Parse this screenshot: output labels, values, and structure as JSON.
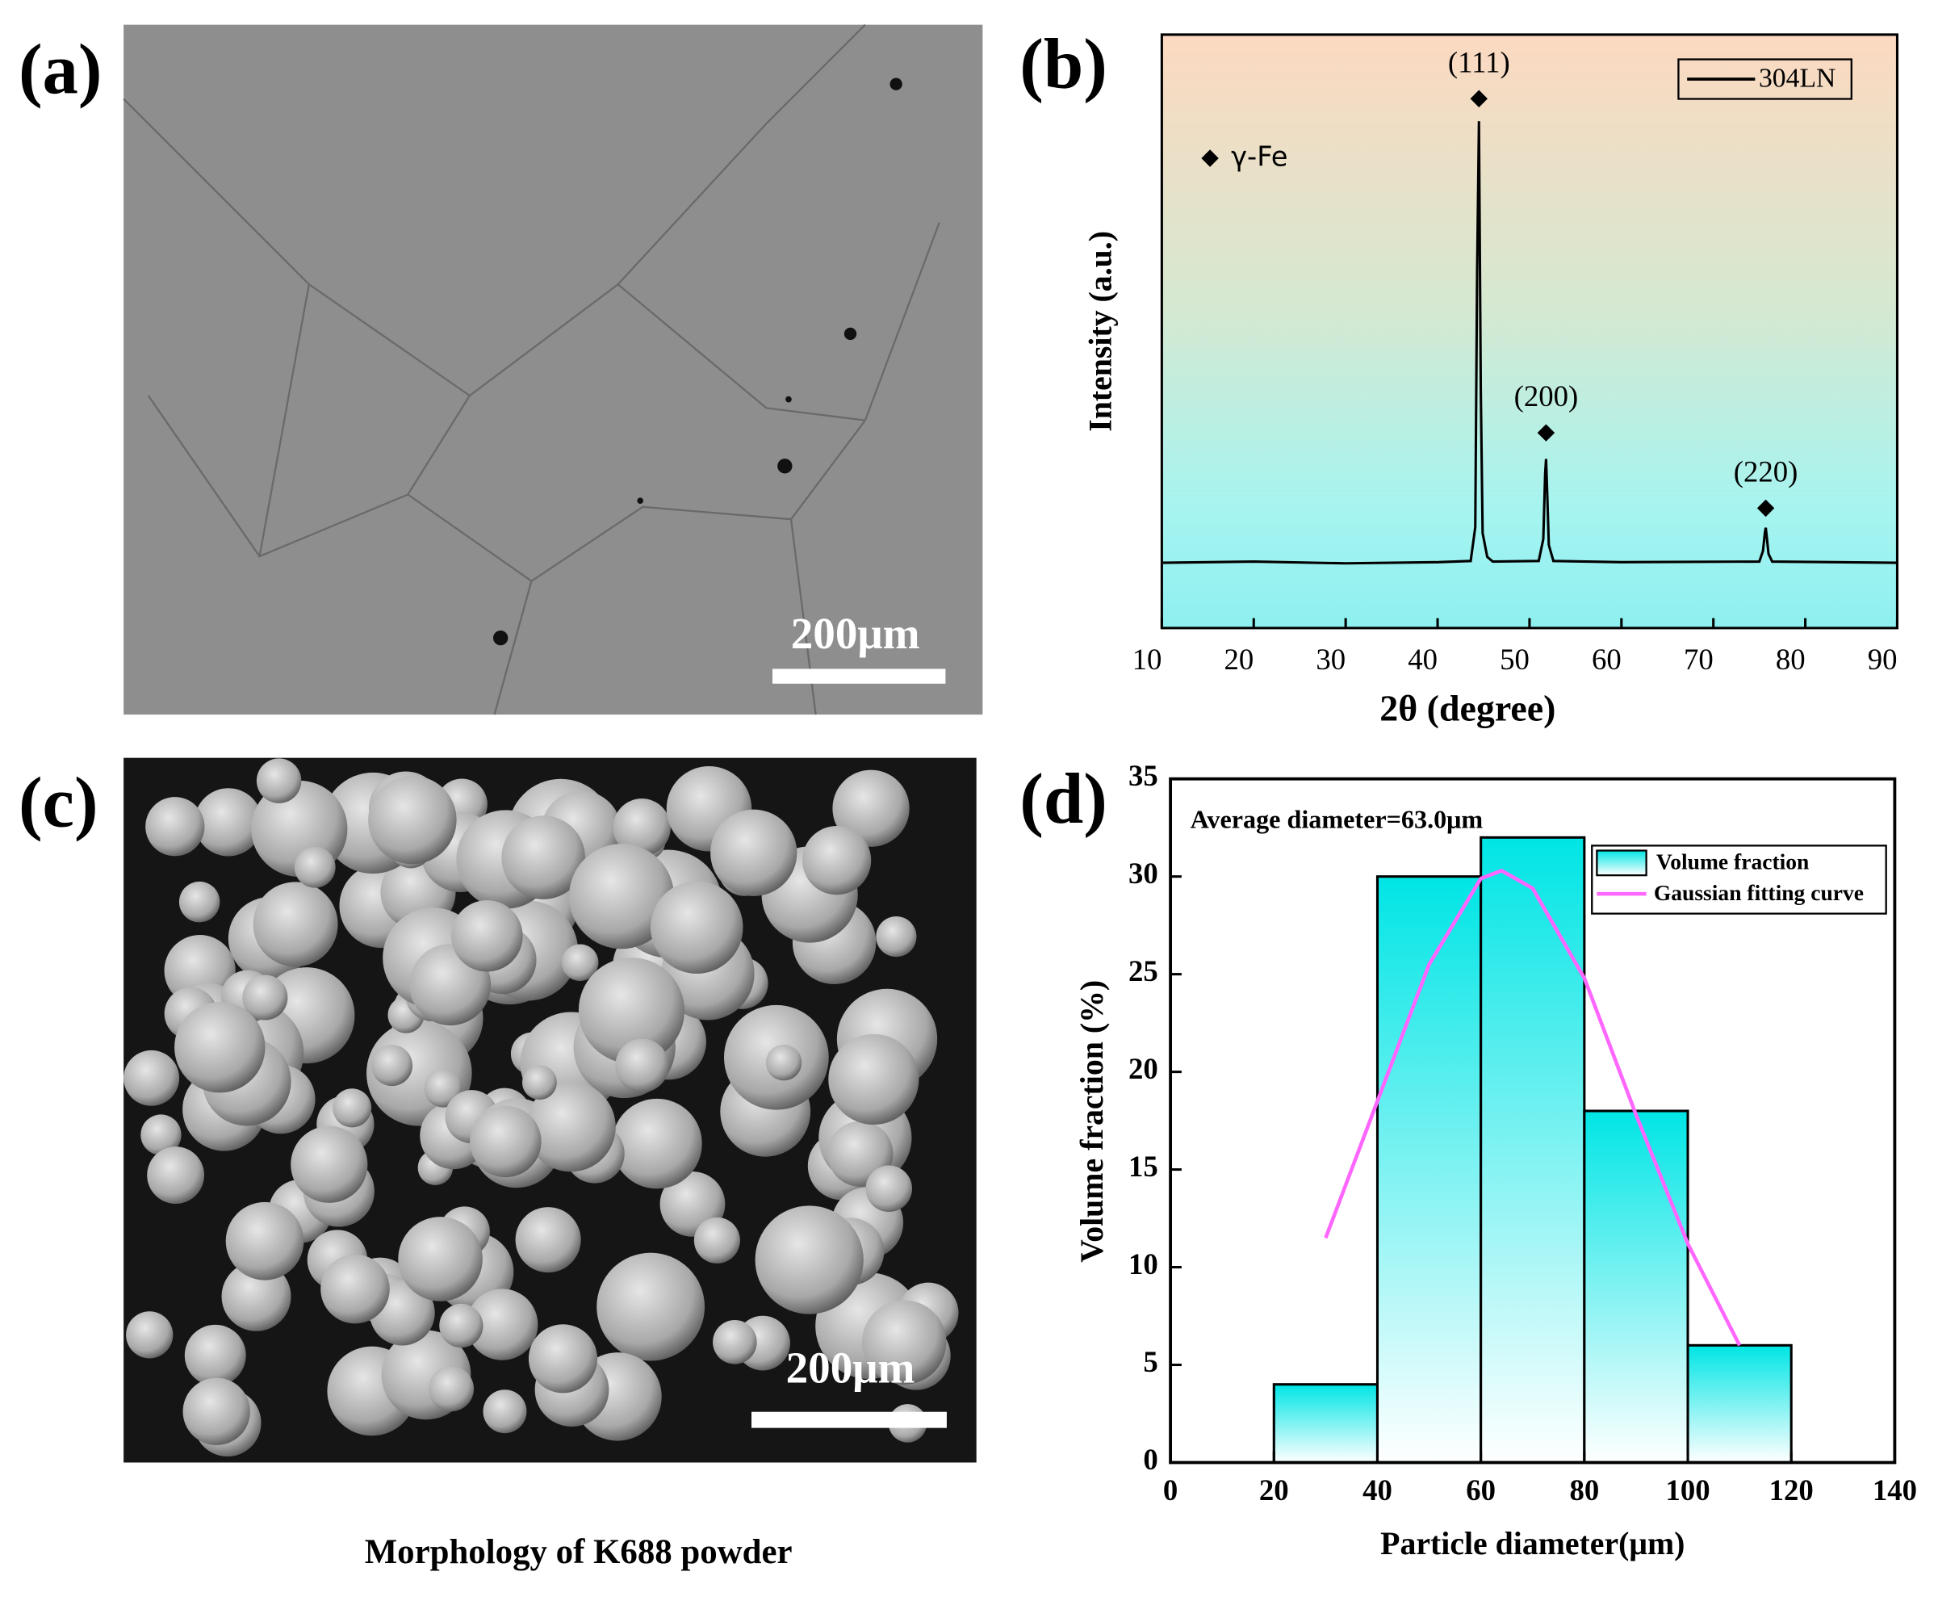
{
  "panels": [
    {
      "label": "(a)",
      "scale_bar": "200μm"
    },
    {
      "label": "(c)",
      "scale_bar": "200μm",
      "caption": "Morphology of K688 powder"
    }
  ],
  "chart_data": [
    {
      "type": "line",
      "panel_label": "(b)",
      "xlabel": "2θ (degree)",
      "ylabel": "Intensity (a.u.)",
      "xlim": [
        10,
        90
      ],
      "xticks": [
        10,
        20,
        30,
        40,
        50,
        60,
        70,
        80,
        90
      ],
      "ylim": [
        0,
        100
      ],
      "x": [
        10,
        20,
        30,
        40,
        43.6,
        44.1,
        44.3,
        44.5,
        44.7,
        44.9,
        45.4,
        46,
        51.0,
        51.5,
        51.7,
        51.8,
        51.9,
        52.1,
        52.6,
        60,
        75.0,
        75.4,
        75.6,
        75.7,
        75.8,
        76.0,
        76.4,
        90
      ],
      "series": [
        {
          "name": "304LN",
          "color": "#000000",
          "values": [
            11,
            11.2,
            10.9,
            11.1,
            11.3,
            17,
            60,
            85.4,
            40,
            16,
            12,
            11.2,
            11.3,
            15,
            26,
            28.5,
            24,
            14,
            11.3,
            11.1,
            11.2,
            13,
            16,
            16.9,
            15.5,
            12.5,
            11.2,
            11
          ]
        }
      ],
      "marker_legend": "γ-Fe",
      "annotations": [
        {
          "text": "(111)",
          "x": 44.5,
          "y": 89.2
        },
        {
          "text": "(200)",
          "x": 51.8,
          "y": 32.9
        },
        {
          "text": "(220)",
          "x": 75.7,
          "y": 20.2
        }
      ]
    },
    {
      "type": "histogram",
      "panel_label": "(d)",
      "xlabel": "Particle diameter(μm)",
      "ylabel": "Volume fraction (%)",
      "annotation": "Average diameter=63.0μm",
      "xlim": [
        0,
        140
      ],
      "xticks": [
        0,
        20,
        40,
        60,
        80,
        100,
        120,
        140
      ],
      "ylim": [
        0,
        35
      ],
      "yticks": [
        0,
        5,
        10,
        15,
        20,
        25,
        30,
        35
      ],
      "bins": [
        20,
        40,
        60,
        80,
        100,
        120
      ],
      "counts": [
        4,
        30,
        32,
        18,
        6
      ],
      "name": "Volume fraction",
      "color": "#00e5e5",
      "series": [
        {
          "name": "Gaussian fitting curve",
          "color": "#ff66ff",
          "x": [
            30,
            40,
            50,
            60,
            64,
            70,
            80,
            90,
            100,
            110
          ],
          "values": [
            11.5,
            18.5,
            25.5,
            29.9,
            30.3,
            29.4,
            24.8,
            17.8,
            11.2,
            6
          ]
        }
      ]
    }
  ]
}
